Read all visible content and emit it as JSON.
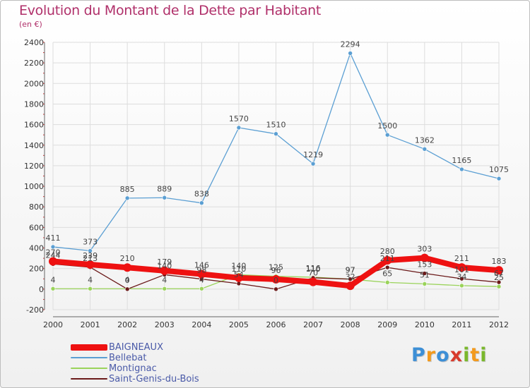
{
  "header": {
    "title": "Evolution du Montant de la Dette par Habitant",
    "subtitle": "(en €)"
  },
  "colors": {
    "title": "#b0306a",
    "grid": "#dddddd",
    "axis": "#666666",
    "legend_text": "#4a5aa8"
  },
  "logo": {
    "letters": [
      {
        "ch": "P",
        "color": "#3d8fd6"
      },
      {
        "ch": "r",
        "color": "#f39a1d"
      },
      {
        "ch": "o",
        "color": "#3d8fd6"
      },
      {
        "ch": "x",
        "color": "#d83a2c"
      },
      {
        "ch": "i",
        "color": "#7ab82c"
      },
      {
        "ch": "t",
        "color": "#f39a1d"
      },
      {
        "ch": "i",
        "color": "#7ab82c"
      }
    ]
  },
  "chart_data": {
    "type": "line",
    "title": "Evolution du Montant de la Dette par Habitant",
    "subtitle": "(en €)",
    "x": [
      2000,
      2001,
      2002,
      2003,
      2004,
      2005,
      2006,
      2007,
      2008,
      2009,
      2010,
      2011,
      2012
    ],
    "ylim": [
      -200,
      2400
    ],
    "yticks": [
      -200,
      0,
      200,
      400,
      600,
      800,
      1000,
      1200,
      1400,
      1600,
      1800,
      2000,
      2200,
      2400
    ],
    "grid": true,
    "legend_position": "bottom-left",
    "series": [
      {
        "name": "BAIGNEAUX",
        "color": "#ee1111",
        "values": [
          270,
          239,
          210,
          179,
          146,
          110,
          96,
          70,
          32,
          280,
          303,
          211,
          183
        ],
        "labels": [
          "270",
          "239",
          "210",
          "179",
          "146",
          "110",
          "96",
          "70",
          "32",
          "280",
          "303",
          "211",
          "183"
        ]
      },
      {
        "name": "Bellebat",
        "color": "#5b9fd3",
        "values": [
          411,
          373,
          885,
          889,
          838,
          1570,
          1510,
          1219,
          2294,
          1500,
          1362,
          1165,
          1075
        ],
        "labels": [
          "411",
          "373",
          "885",
          "889",
          "838",
          "1570",
          "1510",
          "1219",
          "2294",
          "1500",
          "1362",
          "1165",
          "1075"
        ]
      },
      {
        "name": "Montignac",
        "color": "#9ad35a",
        "values": [
          4,
          4,
          4,
          4,
          4,
          140,
          125,
          116,
          97,
          65,
          51,
          34,
          25
        ],
        "labels": [
          "4",
          "4",
          "4",
          "4",
          "4",
          "140",
          "125",
          "116",
          "97",
          "65",
          "51",
          "34",
          "25"
        ]
      },
      {
        "name": "Saint-Genis-du-Bois",
        "color": "#6b1a1a",
        "values": [
          244,
          213,
          0,
          140,
          98,
          54,
          0,
          110,
          97,
          211,
          153,
          101,
          67
        ],
        "labels": [
          "244",
          "213",
          "0",
          "140",
          "98",
          "54",
          "0",
          "110",
          "97",
          "211",
          "153",
          "101",
          "67"
        ]
      }
    ]
  }
}
